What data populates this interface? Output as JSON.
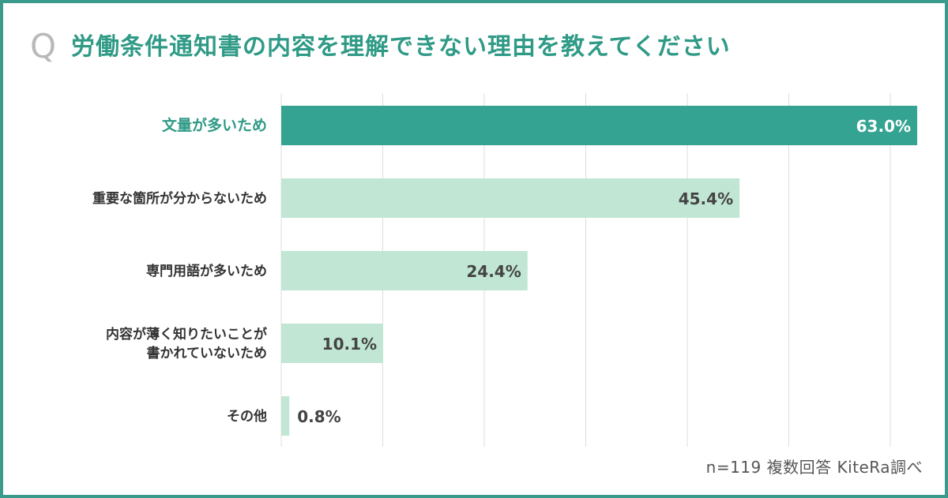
{
  "title": "労働条件通知書の内容を理解できない理由を教えてください",
  "q_mark": "Q",
  "footnote": "n=119 複数回答 KiteRa調べ",
  "colors": {
    "border": "#3a9a8c",
    "highlight_bar": "#34a392",
    "bar": "#c1e6d4",
    "highlight_text": "#2f9a86",
    "label_text": "#333333",
    "grid": "#dcdcdc"
  },
  "chart_data": {
    "type": "bar",
    "orientation": "horizontal",
    "title": "労働条件通知書の内容を理解できない理由を教えてください",
    "categories": [
      [
        "文量が多いため"
      ],
      [
        "重要な箇所が分からないため"
      ],
      [
        "専門用語が多いため"
      ],
      [
        "内容が薄く知りたいことが",
        "書かれていないため"
      ],
      [
        "その他"
      ]
    ],
    "values": [
      63.0,
      45.4,
      24.4,
      10.1,
      0.8
    ],
    "value_labels": [
      "63.0%",
      "45.4%",
      "24.4%",
      "10.1%",
      "0.8%"
    ],
    "highlight_index": 0,
    "xlim": [
      0,
      63.0
    ],
    "grid": true,
    "grid_lines": 7,
    "legend": "none"
  }
}
